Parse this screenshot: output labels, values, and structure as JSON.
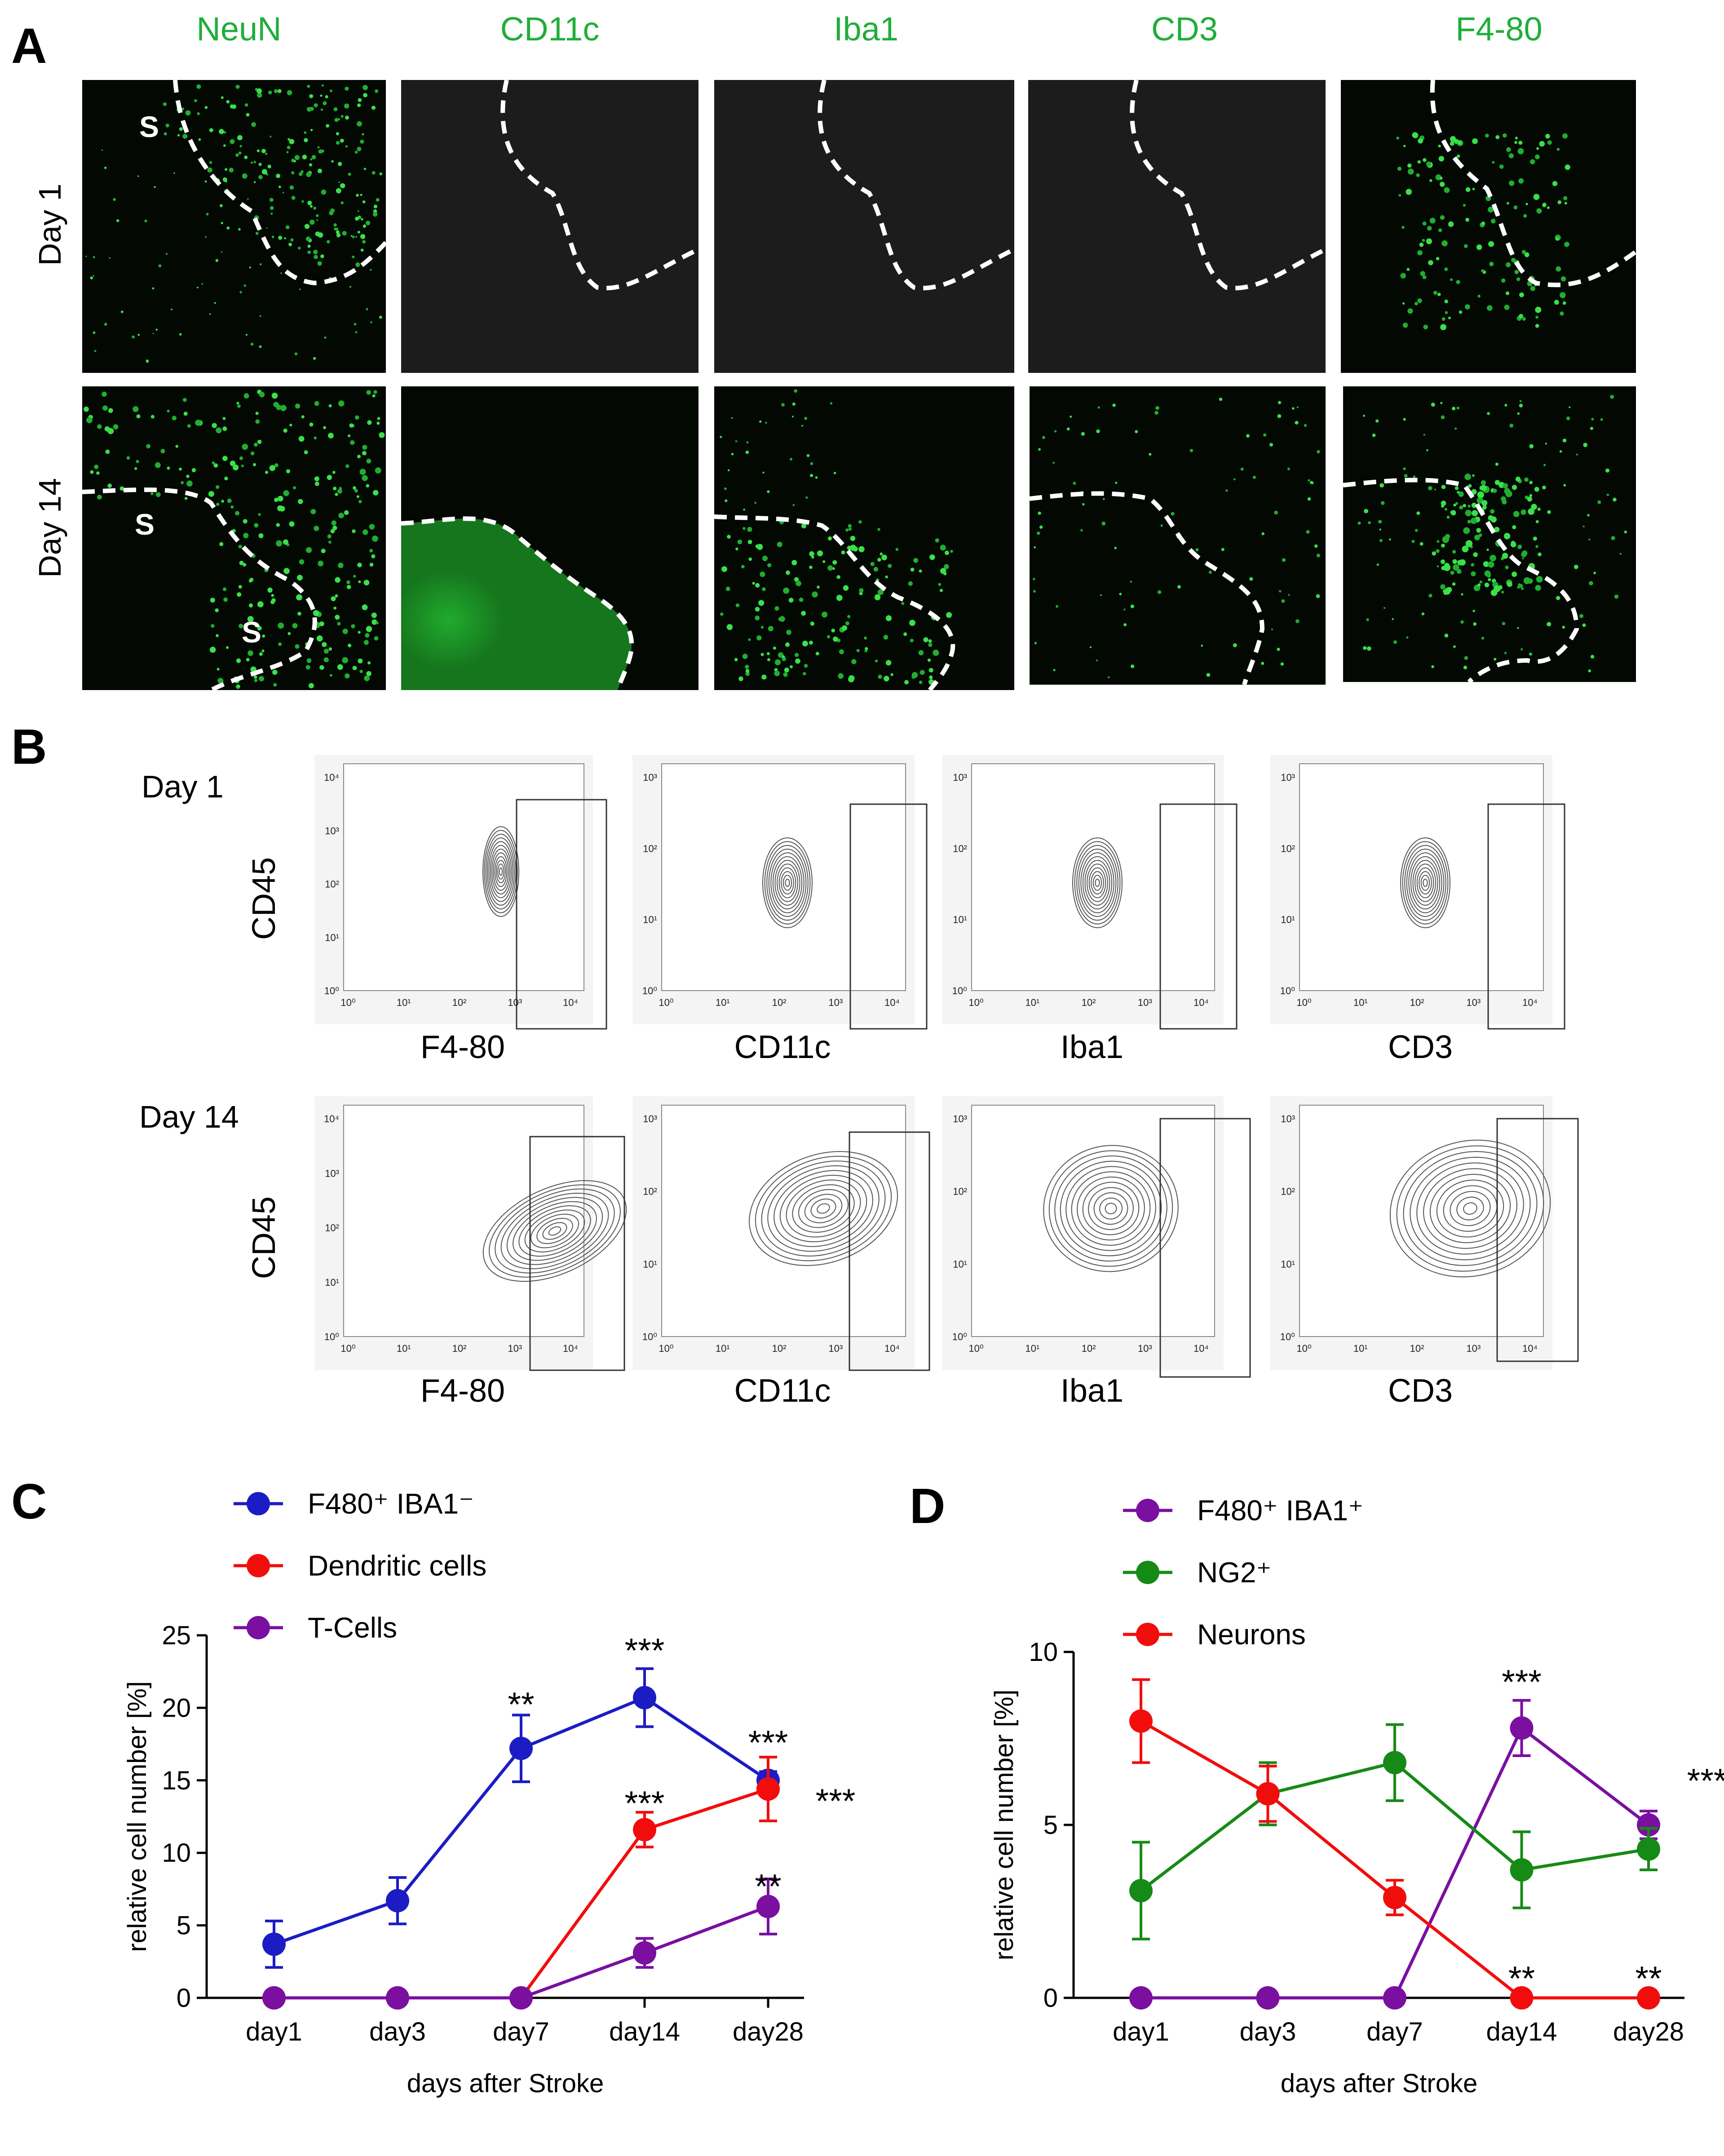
{
  "panels": {
    "a": "A",
    "b": "B",
    "c": "C",
    "d": "D"
  },
  "histology": {
    "columns": [
      "NeuN",
      "CD11c",
      "Iba1",
      "CD3",
      "F4-80"
    ],
    "rows": [
      "Day 1",
      "Day 14"
    ],
    "stroke_mark": "S",
    "color": "#1fae3a"
  },
  "flow": {
    "rows": [
      "Day 1",
      "Day 14"
    ],
    "y_label": "CD45",
    "x_labels": [
      "F4-80",
      "CD11c",
      "Iba1",
      "CD3"
    ],
    "first_plot_y_ticks": [
      "10⁰",
      "10¹",
      "10²",
      "10³",
      "10⁴"
    ],
    "other_y_ticks": [
      "10⁰",
      "10¹",
      "10²",
      "10³"
    ],
    "x_ticks": [
      "10⁰",
      "10¹",
      "10²",
      "10³",
      "10⁴"
    ]
  },
  "chart_data": [
    {
      "type": "line",
      "panel": "C",
      "xlabel": "days after Stroke",
      "ylabel": "relative cell number [%]",
      "categories": [
        "day1",
        "day3",
        "day7",
        "day14",
        "day28"
      ],
      "ylim": [
        0,
        25
      ],
      "yticks": [
        "0",
        "5",
        "10",
        "15",
        "20",
        "25"
      ],
      "series": [
        {
          "name": "F480⁺ IBA1⁻",
          "color": "#1c1cc4",
          "values": [
            3.7,
            6.7,
            17.2,
            20.7,
            15.0
          ],
          "errors": [
            1.6,
            1.6,
            2.3,
            2.0,
            0.6
          ],
          "stars": [
            "",
            "",
            "**",
            "***",
            "***"
          ]
        },
        {
          "name": "Dendritic cells",
          "color": "#f20d0d",
          "values": [
            0,
            0,
            0,
            11.6,
            14.4
          ],
          "errors": [
            0,
            0,
            0,
            1.2,
            2.2
          ],
          "stars": [
            "",
            "",
            "",
            "***",
            "***"
          ]
        },
        {
          "name": "T-Cells",
          "color": "#7a0fa0",
          "values": [
            0,
            0,
            0,
            3.1,
            6.3
          ],
          "errors": [
            0,
            0,
            0,
            1.0,
            1.9
          ],
          "stars": [
            "",
            "",
            "",
            "",
            "**"
          ]
        }
      ]
    },
    {
      "type": "line",
      "panel": "D",
      "xlabel": "days after Stroke",
      "ylabel": "relative cell number [%]",
      "categories": [
        "day1",
        "day3",
        "day7",
        "day14",
        "day28"
      ],
      "ylim": [
        0,
        10
      ],
      "yticks": [
        "0",
        "5",
        "10"
      ],
      "series": [
        {
          "name": "F480⁺ IBA1⁺",
          "color": "#7a0fa0",
          "values": [
            0,
            0,
            0,
            7.8,
            5.0
          ],
          "errors": [
            0,
            0,
            0,
            0.8,
            0.4
          ],
          "stars": [
            "",
            "",
            "",
            "***",
            "***"
          ]
        },
        {
          "name": "NG2⁺",
          "color": "#168a16",
          "values": [
            3.1,
            5.9,
            6.8,
            3.7,
            4.3
          ],
          "errors": [
            1.4,
            0.9,
            1.1,
            1.1,
            0.6
          ],
          "stars": [
            "",
            "",
            "",
            "",
            ""
          ]
        },
        {
          "name": "Neurons",
          "color": "#f20d0d",
          "values": [
            8.0,
            5.9,
            2.9,
            0,
            0
          ],
          "errors": [
            1.2,
            0.8,
            0.5,
            0,
            0
          ],
          "stars": [
            "",
            "",
            "",
            "**",
            "**"
          ]
        }
      ]
    }
  ]
}
